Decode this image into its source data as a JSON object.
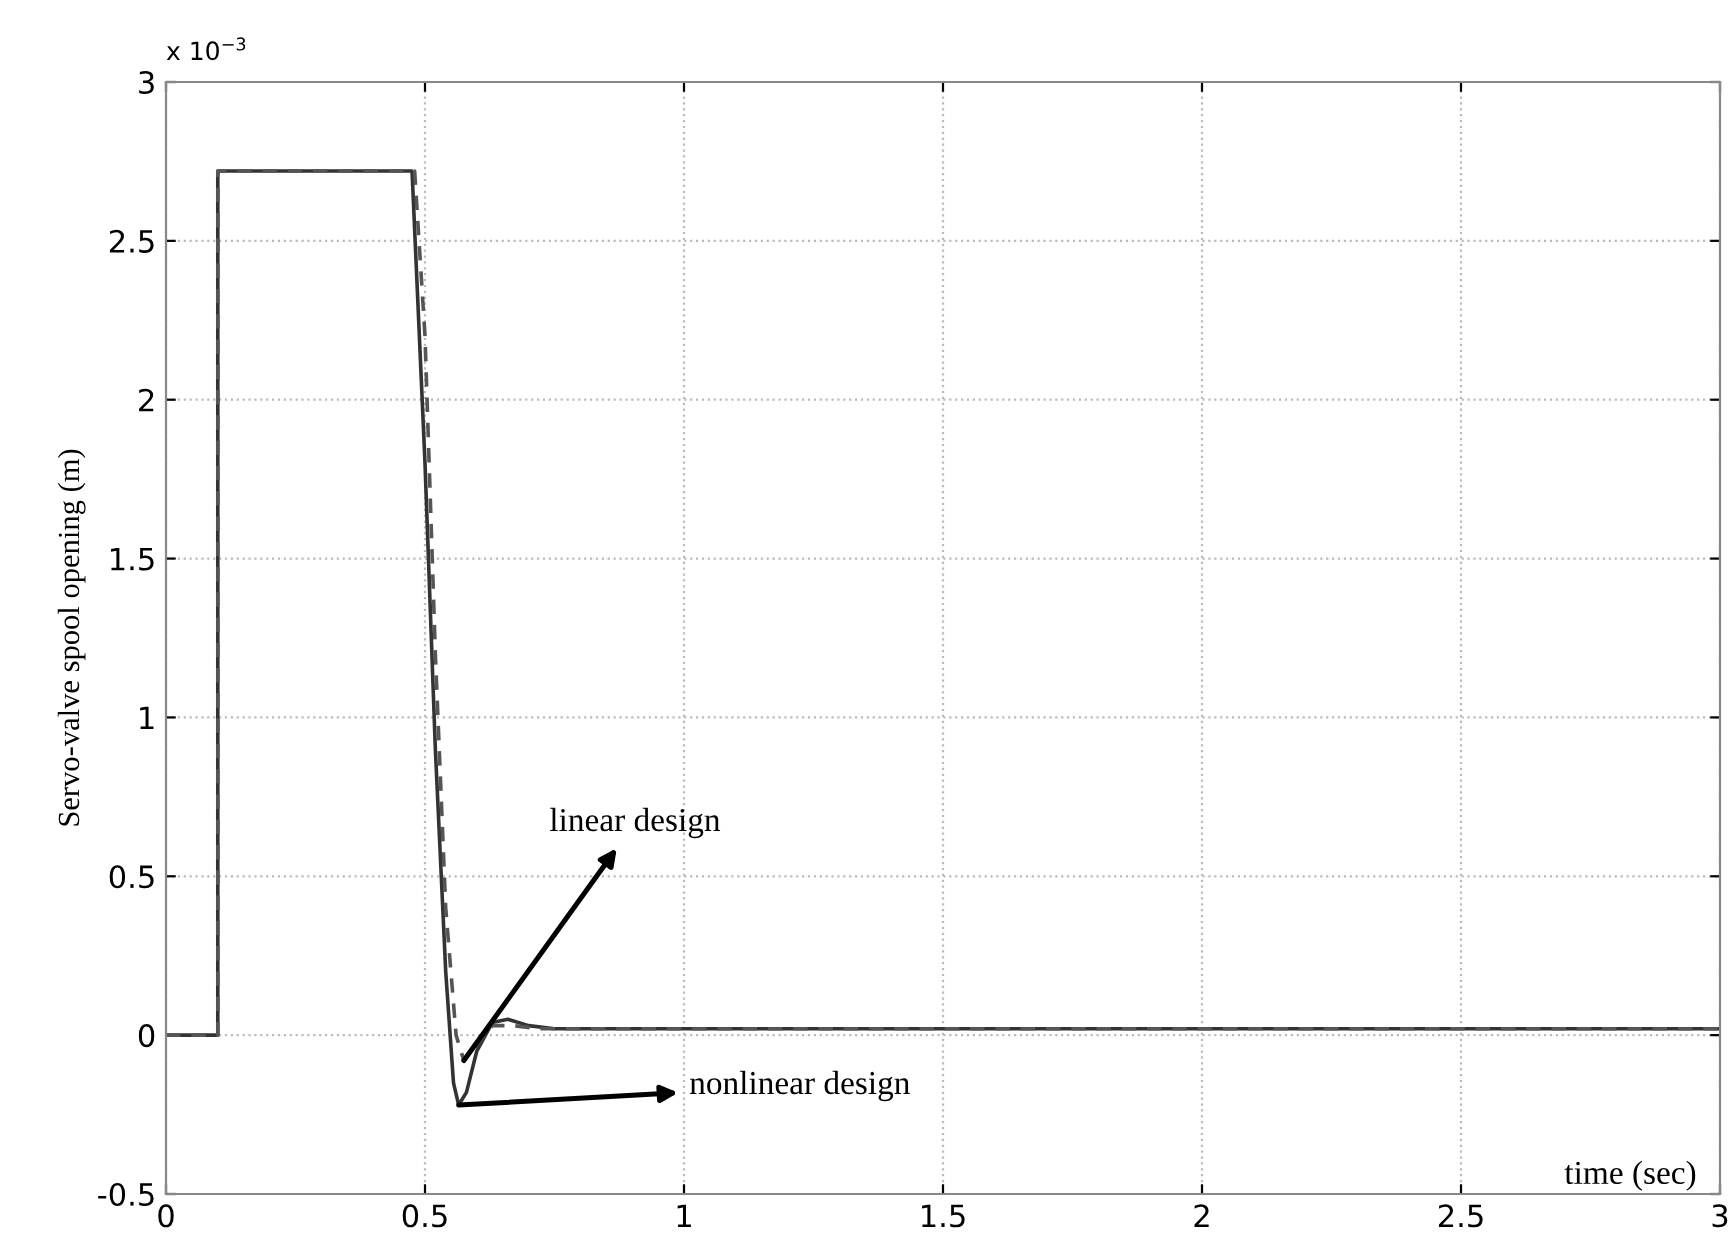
{
  "chart_data": {
    "type": "line",
    "ylabel": "Servo-valve spool opening (m)",
    "xlabel": "time (sec)",
    "series": [
      {
        "color": "#333333",
        "line_style": "solid",
        "x": [
          0,
          0.1,
          0.1,
          0.475,
          0.5,
          0.52,
          0.54,
          0.555,
          0.565,
          0.58,
          0.6,
          0.63,
          0.66,
          0.7,
          0.75,
          0.8,
          3
        ],
        "values": [
          0,
          0,
          2.72,
          2.72,
          1.8,
          0.9,
          0.2,
          -0.15,
          -0.22,
          -0.18,
          -0.05,
          0.04,
          0.05,
          0.03,
          0.02,
          0.02,
          0.02
        ]
      },
      {
        "color": "#555555",
        "line_style": "dashed",
        "x": [
          0,
          0.1,
          0.1,
          0.48,
          0.5,
          0.52,
          0.54,
          0.56,
          0.575,
          0.6,
          0.63,
          0.67,
          0.72,
          3
        ],
        "values": [
          0,
          0,
          2.72,
          2.72,
          2.2,
          1.2,
          0.4,
          0.0,
          -0.08,
          -0.03,
          0.03,
          0.03,
          0.02,
          0.02
        ]
      }
    ],
    "annotations": [
      "x 10$^{−3}$",
      {
        "text": "linear design",
        "x": 0.575,
        "y": -0.08
      },
      {
        "text": "nonlinear design",
        "x": 0.565,
        "y": -0.22
      }
    ],
    "xlim": [
      0,
      3
    ],
    "xticks": [
      0,
      0.5,
      1,
      1.5,
      2,
      2.5,
      3
    ],
    "ylim": [
      -0.5,
      3
    ],
    "yticks": [
      -0.5,
      0,
      0.5,
      1,
      1.5,
      2,
      2.5,
      3
    ],
    "grid": true,
    "legend": false
  }
}
